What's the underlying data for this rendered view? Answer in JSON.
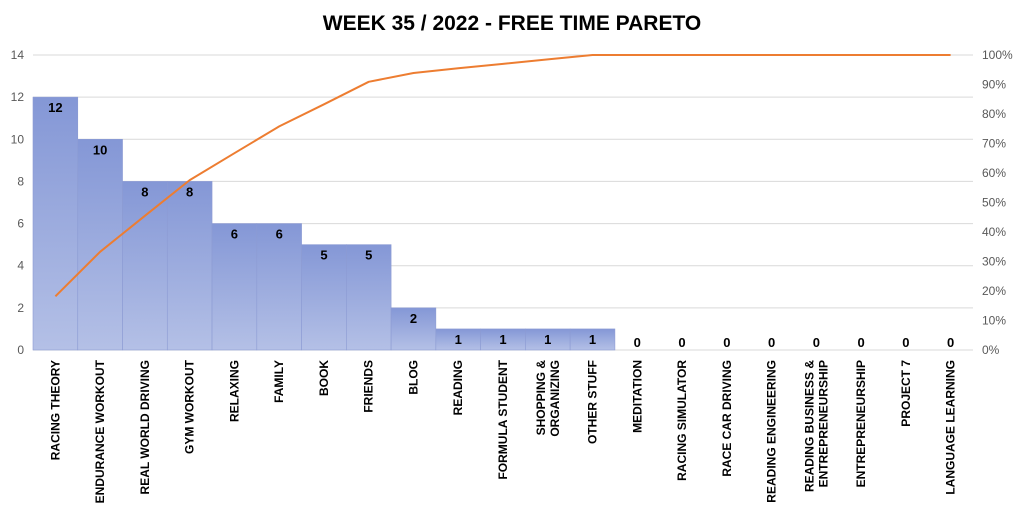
{
  "chart_data": {
    "type": "bar",
    "title": "WEEK 35 / 2022 - FREE TIME PARETO",
    "categories": [
      "RACING THEORY",
      "ENDURANCE WORKOUT",
      "REAL WORLD DRIVING",
      "GYM WORKOUT",
      "RELAXING",
      "FAMILY",
      "BOOK",
      "FRIENDS",
      "BLOG",
      "READING",
      "FORMULA STUDENT",
      "SHOPPING & ORGANIZING",
      "OTHER STUFF",
      "MEDITATION",
      "RACING SIMULATOR",
      "RACE CAR DRIVING",
      "READING ENGINEERING",
      "READING BUSINESS & ENTREPRENEURSHIP",
      "ENTREPRENEURSHIP",
      "PROJECT 7",
      "LANGUAGE LEARNING"
    ],
    "category_lines": [
      [
        "RACING THEORY"
      ],
      [
        "ENDURANCE WORKOUT"
      ],
      [
        "REAL WORLD DRIVING"
      ],
      [
        "GYM WORKOUT"
      ],
      [
        "RELAXING"
      ],
      [
        "FAMILY"
      ],
      [
        "BOOK"
      ],
      [
        "FRIENDS"
      ],
      [
        "BLOG"
      ],
      [
        "READING"
      ],
      [
        "FORMULA STUDENT"
      ],
      [
        "SHOPPING &",
        "ORGANIZING"
      ],
      [
        "OTHER STUFF"
      ],
      [
        "MEDITATION"
      ],
      [
        "RACING SIMULATOR"
      ],
      [
        "RACE CAR DRIVING"
      ],
      [
        "READING ENGINEERING"
      ],
      [
        "READING BUSINESS &",
        "ENTREPRENEURSHIP"
      ],
      [
        "ENTREPRENEURSHIP"
      ],
      [
        "PROJECT 7"
      ],
      [
        "LANGUAGE LEARNING"
      ]
    ],
    "series": [
      {
        "type": "bar",
        "axis": "left",
        "values": [
          12,
          10,
          8,
          8,
          6,
          6,
          5,
          5,
          2,
          1,
          1,
          1,
          1,
          0,
          0,
          0,
          0,
          0,
          0,
          0,
          0
        ]
      },
      {
        "type": "line",
        "axis": "right",
        "values": [
          18.2,
          33.3,
          45.5,
          57.6,
          66.7,
          75.8,
          83.3,
          90.9,
          93.9,
          95.5,
          97.0,
          98.5,
          100,
          100,
          100,
          100,
          100,
          100,
          100,
          100,
          100
        ]
      }
    ],
    "ylim": [
      0,
      14
    ],
    "yticks": [
      0,
      2,
      4,
      6,
      8,
      10,
      12,
      14
    ],
    "y2lim": [
      0,
      100
    ],
    "y2ticks": [
      "0%",
      "10%",
      "20%",
      "30%",
      "40%",
      "50%",
      "60%",
      "70%",
      "80%",
      "90%",
      "100%"
    ],
    "grid": true,
    "colors": {
      "bar_top": "#8497d6",
      "bar_bottom": "#b4c0e6",
      "bar_edge": "#8c9bd3",
      "line": "#ed7d31",
      "grid": "#d9d9d9"
    }
  }
}
